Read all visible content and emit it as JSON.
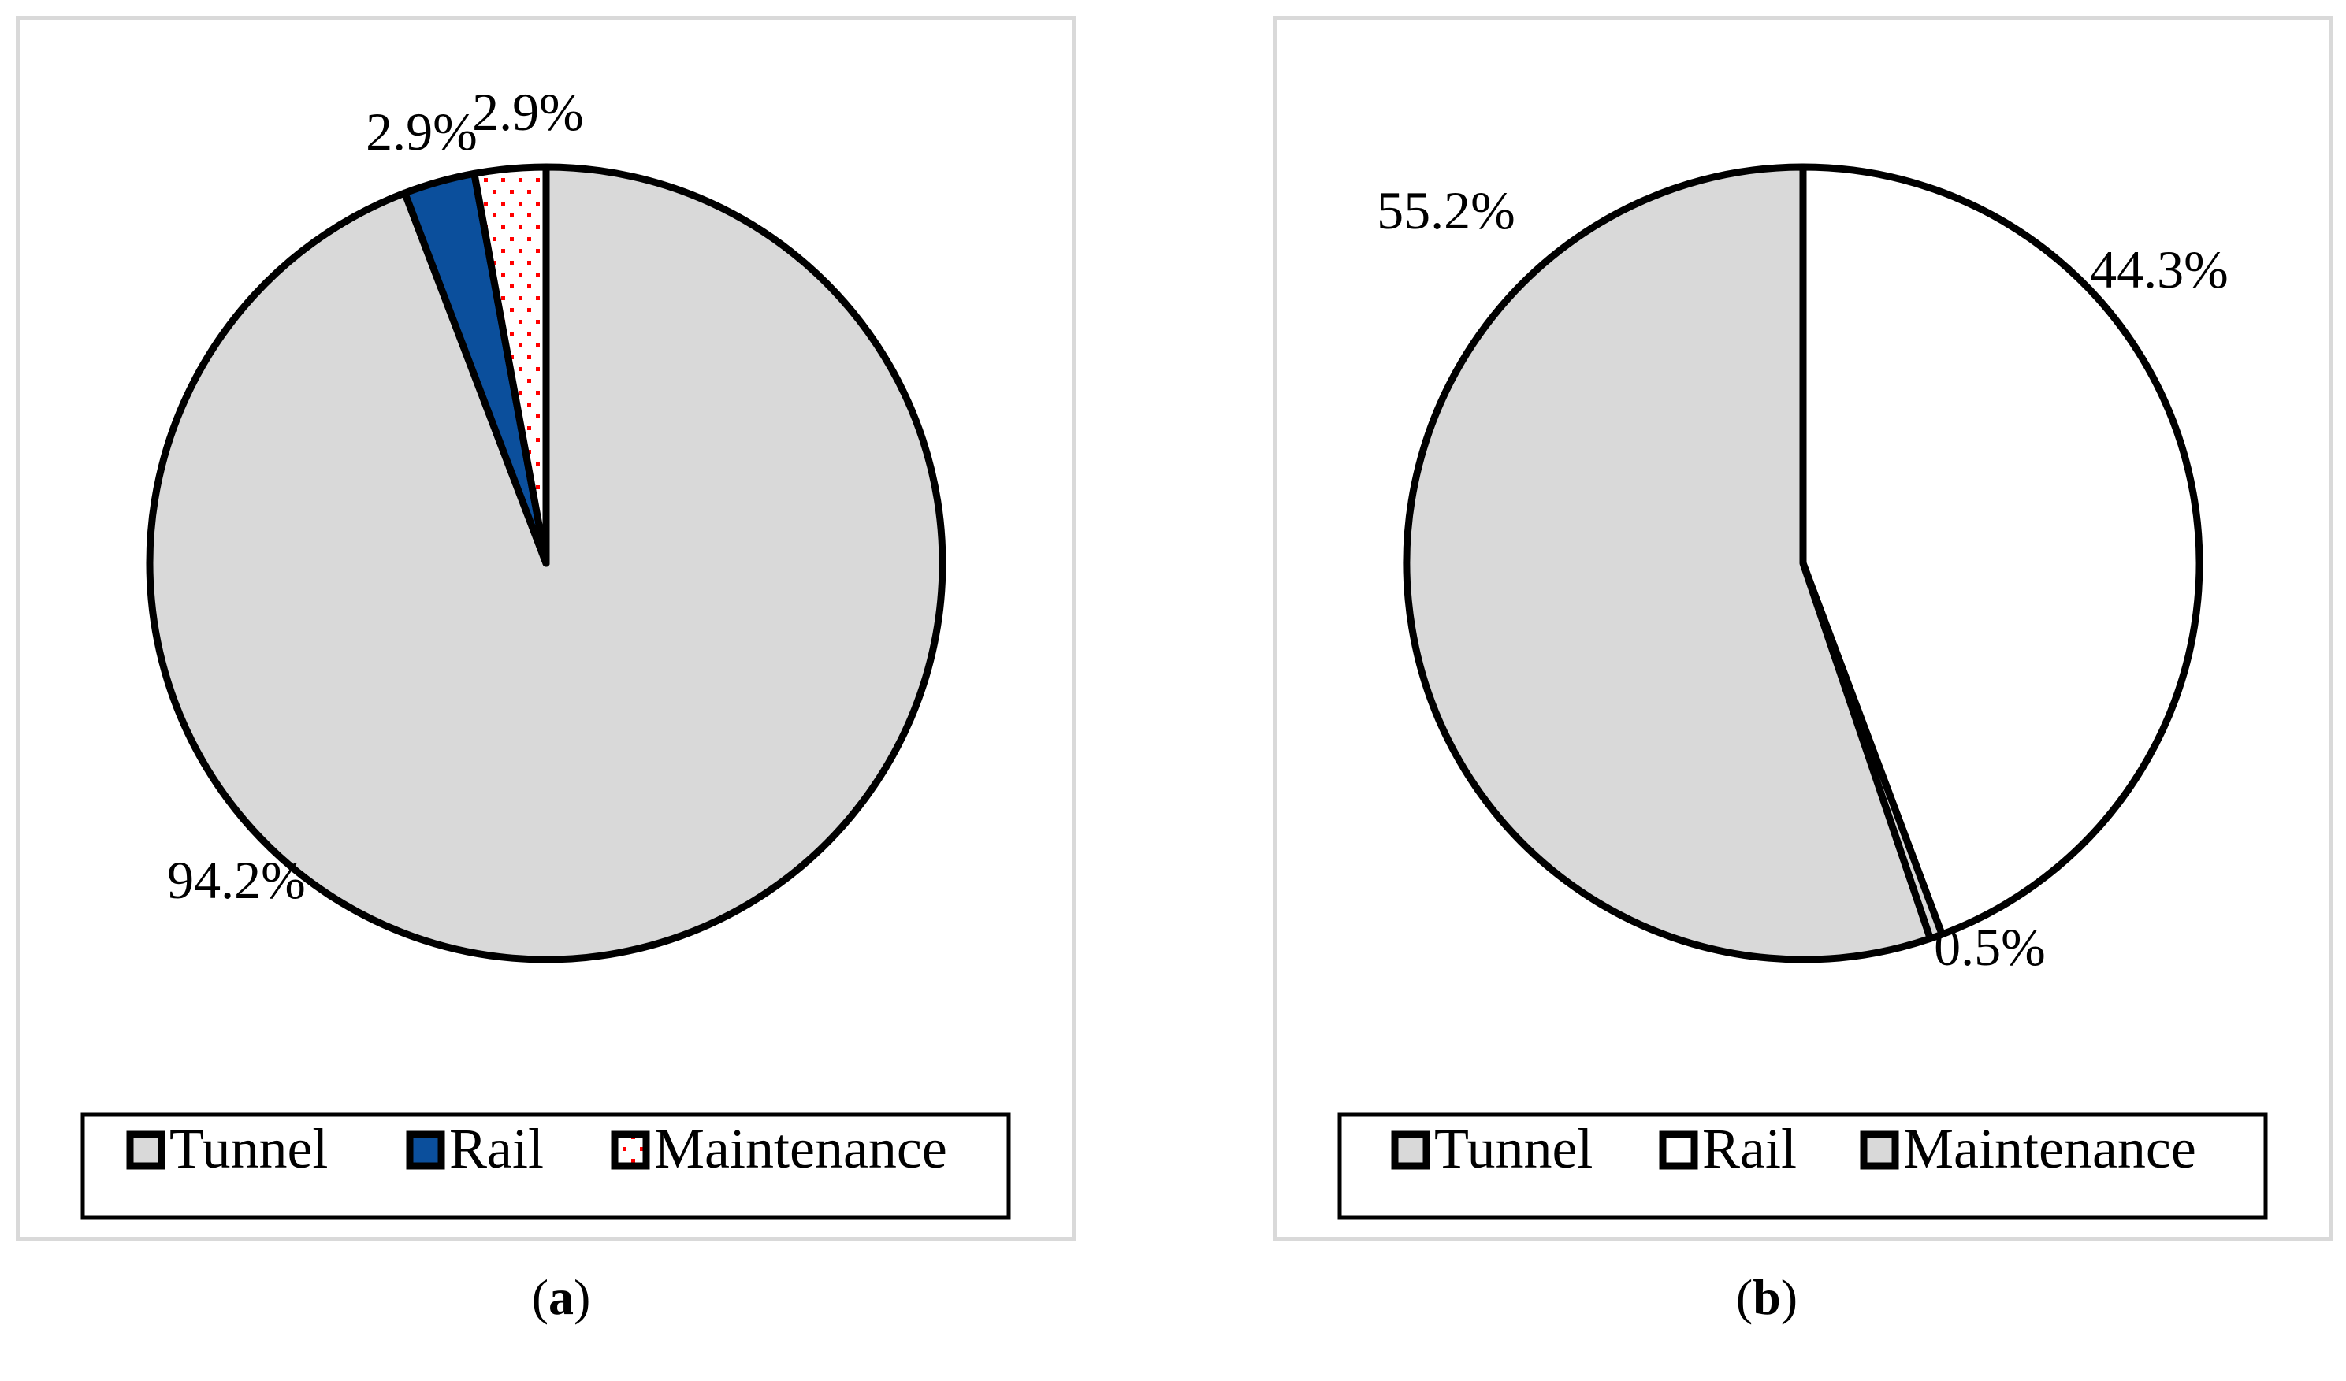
{
  "chart_data": [
    {
      "type": "pie",
      "panel": "a",
      "start": "12 o'clock",
      "direction": "clockwise",
      "slices": [
        {
          "name": "Tunnel",
          "value": 94.2,
          "label": "94.2%",
          "fill": "#d9d9d9",
          "pattern": "none"
        },
        {
          "name": "Rail",
          "value": 2.9,
          "label": "2.9%",
          "fill": "#0b4f9c",
          "pattern": "none"
        },
        {
          "name": "Maintenance",
          "value": 2.9,
          "label": "2.9%",
          "fill": "#ffffff",
          "pattern": "red-dots"
        }
      ],
      "legend": {
        "placement": "bottom",
        "items": [
          "Tunnel",
          "Rail",
          "Maintenance"
        ]
      },
      "caption": "(a)"
    },
    {
      "type": "pie",
      "panel": "b",
      "start": "12 o'clock",
      "direction": "clockwise",
      "slices": [
        {
          "name": "Rail",
          "value": 44.3,
          "label": "44.3%",
          "fill": "#ffffff",
          "pattern": "none"
        },
        {
          "name": "Maintenance",
          "value": 0.5,
          "label": "0.5%",
          "fill": "#d9d9d9",
          "pattern": "none"
        },
        {
          "name": "Tunnel",
          "value": 55.2,
          "label": "55.2%",
          "fill": "#d9d9d9",
          "pattern": "none"
        }
      ],
      "legend": {
        "placement": "bottom",
        "items": [
          "Tunnel",
          "Rail",
          "Maintenance"
        ]
      },
      "caption": "(b)"
    }
  ],
  "colors": {
    "outline": "#000000",
    "frame": "#d9d9d9",
    "dots": "#ff0000"
  }
}
